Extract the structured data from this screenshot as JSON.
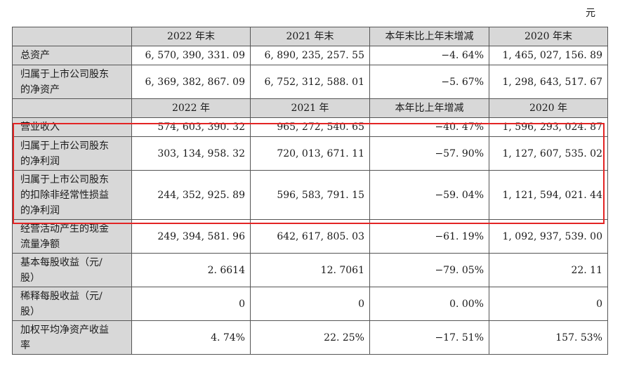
{
  "unit": "元",
  "header1": [
    "2022 年末",
    "2021 年末",
    "本年末比上年末增减",
    "2020 年末"
  ],
  "block1": [
    {
      "label": "总资产",
      "values": [
        "6, 570, 390, 331. 09",
        "6, 890, 235, 257. 55",
        "−4. 64%",
        "1, 465, 027, 156. 89"
      ]
    },
    {
      "label_lines": [
        "归属于上市公司股东",
        "的净资产"
      ],
      "values": [
        "6, 369, 382, 867. 09",
        "6, 752, 312, 588. 01",
        "−5. 67%",
        "1, 298, 643, 517. 67"
      ]
    }
  ],
  "header2": [
    "2022 年",
    "2021 年",
    "本年比上年增减",
    "2020 年"
  ],
  "block2": [
    {
      "label": "营业收入",
      "values": [
        "574, 603, 390. 32",
        "965, 272, 540. 65",
        "−40. 47%",
        "1, 596, 293, 024. 87"
      ]
    },
    {
      "label_lines": [
        "归属于上市公司股东",
        "的净利润"
      ],
      "values": [
        "303, 134, 958. 32",
        "720, 013, 671. 11",
        "−57. 90%",
        "1, 127, 607, 535. 02"
      ]
    },
    {
      "label_lines": [
        "归属于上市公司股东",
        "的扣除非经常性损益",
        "的净利润"
      ],
      "values": [
        "244, 352, 925. 89",
        "596, 583, 791. 15",
        "−59. 04%",
        "1, 121, 594, 021. 44"
      ]
    },
    {
      "label_lines": [
        "经营活动产生的现金",
        "流量净额"
      ],
      "values": [
        "249, 394, 581. 96",
        "642, 617, 805. 03",
        "−61. 19%",
        "1, 092, 937, 539. 00"
      ]
    },
    {
      "label_lines": [
        "基本每股收益（元/",
        "股）"
      ],
      "values": [
        "2. 6614",
        "12. 7061",
        "−79. 05%",
        "22. 11"
      ]
    },
    {
      "label_lines": [
        "稀释每股收益（元/",
        "股）"
      ],
      "values": [
        "0",
        "0",
        "0. 00%",
        "0"
      ]
    },
    {
      "label_lines": [
        "加权平均净资产收益",
        "率"
      ],
      "values": [
        "4. 74%",
        "22. 25%",
        "−17. 51%",
        "157. 53%"
      ]
    }
  ]
}
